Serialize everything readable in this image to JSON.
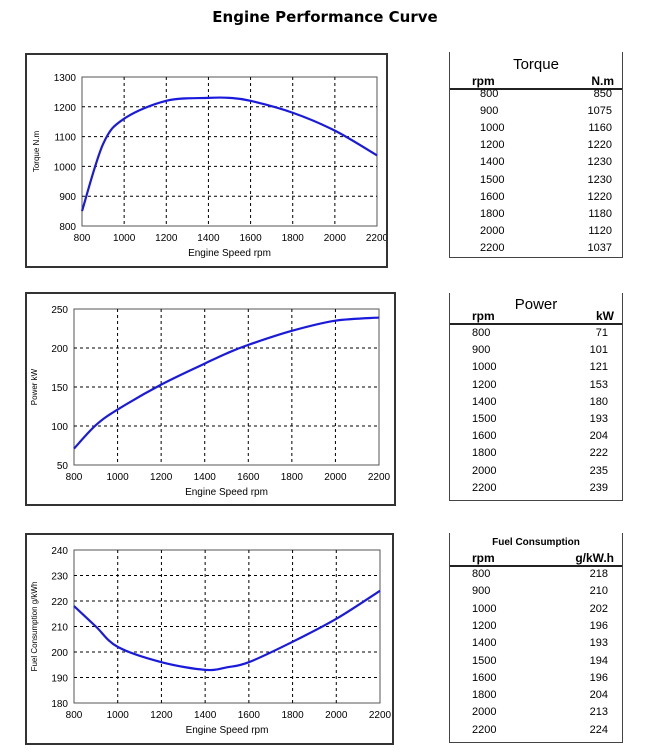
{
  "title": "Engine Performance Curve",
  "chart_data": [
    {
      "type": "line",
      "ylabel": "Torque N.m",
      "xlabel": "Engine Speed rpm",
      "xlim": [
        800,
        2200
      ],
      "ylim": [
        800,
        1300
      ],
      "xticks": [
        800,
        1000,
        1200,
        1400,
        1600,
        1800,
        2000,
        2200
      ],
      "yticks": [
        800,
        900,
        1000,
        1100,
        1200,
        1300
      ],
      "grid": true,
      "color": "#1a1adc",
      "x": [
        800,
        900,
        1000,
        1200,
        1400,
        1500,
        1600,
        1800,
        2000,
        2200
      ],
      "y": [
        850,
        1075,
        1160,
        1220,
        1230,
        1230,
        1220,
        1180,
        1120,
        1037
      ]
    },
    {
      "type": "line",
      "ylabel": "Power kW",
      "xlabel": "Engine Speed rpm",
      "xlim": [
        800,
        2200
      ],
      "ylim": [
        50,
        250
      ],
      "xticks": [
        800,
        1000,
        1200,
        1400,
        1600,
        1800,
        2000,
        2200
      ],
      "yticks": [
        50,
        100,
        150,
        200,
        250
      ],
      "grid": true,
      "color": "#1a1adc",
      "x": [
        800,
        900,
        1000,
        1200,
        1400,
        1500,
        1600,
        1800,
        2000,
        2200
      ],
      "y": [
        71,
        101,
        121,
        153,
        180,
        193,
        204,
        222,
        235,
        239
      ]
    },
    {
      "type": "line",
      "ylabel": "Fuel Consumption g/kWh",
      "xlabel": "Engine Speed rpm",
      "xlim": [
        800,
        2200
      ],
      "ylim": [
        180,
        240
      ],
      "xticks": [
        800,
        1000,
        1200,
        1400,
        1600,
        1800,
        2000,
        2200
      ],
      "yticks": [
        180,
        190,
        200,
        210,
        220,
        230,
        240
      ],
      "grid": true,
      "color": "#1a1adc",
      "x": [
        800,
        900,
        1000,
        1200,
        1400,
        1500,
        1600,
        1800,
        2000,
        2200
      ],
      "y": [
        218,
        210,
        202,
        196,
        193,
        194,
        196,
        204,
        213,
        224
      ]
    }
  ],
  "tables": [
    {
      "title": "Torque",
      "col1": "rpm",
      "col2": "N.m",
      "rows": [
        [
          "800",
          "850"
        ],
        [
          "900",
          "1075"
        ],
        [
          "1000",
          "1160"
        ],
        [
          "1200",
          "1220"
        ],
        [
          "1400",
          "1230"
        ],
        [
          "1500",
          "1230"
        ],
        [
          "1600",
          "1220"
        ],
        [
          "1800",
          "1180"
        ],
        [
          "2000",
          "1120"
        ],
        [
          "2200",
          "1037"
        ]
      ]
    },
    {
      "title": "Power",
      "col1": "rpm",
      "col2": "kW",
      "rows": [
        [
          "800",
          "71"
        ],
        [
          "900",
          "101"
        ],
        [
          "1000",
          "121"
        ],
        [
          "1200",
          "153"
        ],
        [
          "1400",
          "180"
        ],
        [
          "1500",
          "193"
        ],
        [
          "1600",
          "204"
        ],
        [
          "1800",
          "222"
        ],
        [
          "2000",
          "235"
        ],
        [
          "2200",
          "239"
        ]
      ]
    },
    {
      "title": "Fuel Consumption",
      "col1": "rpm",
      "col2": "g/kW.h",
      "rows": [
        [
          "800",
          "218"
        ],
        [
          "900",
          "210"
        ],
        [
          "1000",
          "202"
        ],
        [
          "1200",
          "196"
        ],
        [
          "1400",
          "193"
        ],
        [
          "1500",
          "194"
        ],
        [
          "1600",
          "196"
        ],
        [
          "1800",
          "204"
        ],
        [
          "2000",
          "213"
        ],
        [
          "2200",
          "224"
        ]
      ]
    }
  ]
}
